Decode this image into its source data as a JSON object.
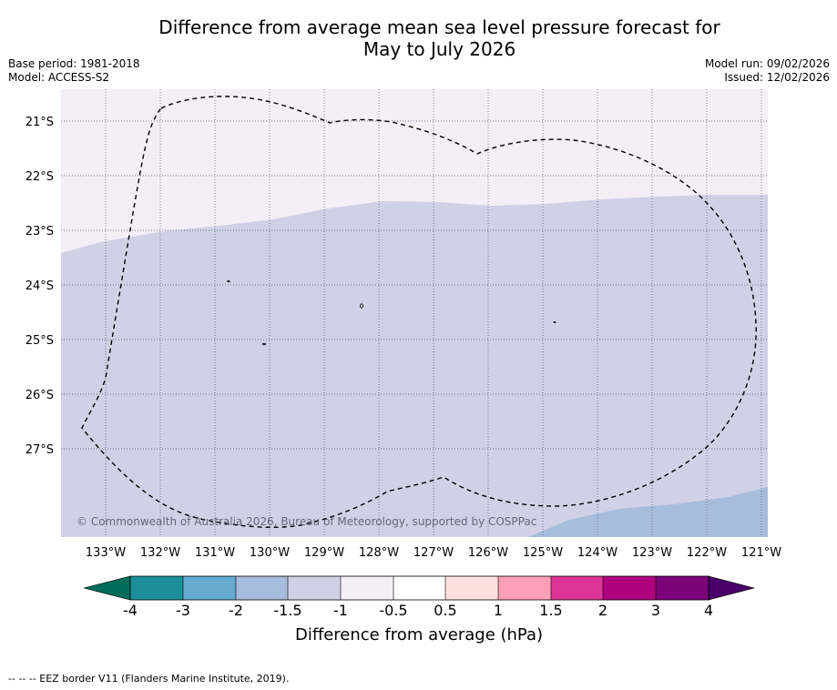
{
  "title": {
    "line1": "Difference from average mean sea level pressure forecast for",
    "line2": "May to July 2026"
  },
  "meta_left": {
    "base_period": "Base period: 1981-2018",
    "model": "Model: ACCESS-S2"
  },
  "meta_right": {
    "model_run": "Model run: 09/02/2026",
    "issued": "Issued: 12/02/2026"
  },
  "map": {
    "lon_labels": [
      "133°W",
      "132°W",
      "131°W",
      "130°W",
      "129°W",
      "128°W",
      "127°W",
      "126°W",
      "125°W",
      "124°W",
      "123°W",
      "122°W",
      "121°W"
    ],
    "lat_labels": [
      "21°S",
      "22°S",
      "23°S",
      "24°S",
      "25°S",
      "26°S",
      "27°S"
    ],
    "copyright": "© Commonwealth of Australia 2026, Bureau of Meteorology, supported by COSPPac",
    "colors": {
      "light_lilac": "#f4eef7",
      "lavender": "#d0d1e6",
      "blue_grey": "#a6bddb",
      "grid": "#555577"
    }
  },
  "colorbar": {
    "ticks": [
      "-4",
      "-3",
      "-2",
      "-1.5",
      "-1",
      "-0.5",
      "0.5",
      "1",
      "1.5",
      "2",
      "3",
      "4"
    ],
    "colors": [
      "#016c59",
      "#1c9099",
      "#67a9cf",
      "#a6bddb",
      "#d0d1e6",
      "#f4eef7",
      "#ffffff",
      "#fde0dd",
      "#fa9fb5",
      "#dd3497",
      "#ae017e",
      "#7a0177",
      "#49006a"
    ],
    "label": "Difference from average (hPa)"
  },
  "footer": "--  --  -- EEZ border V11 (Flanders Marine Institute, 2019)."
}
